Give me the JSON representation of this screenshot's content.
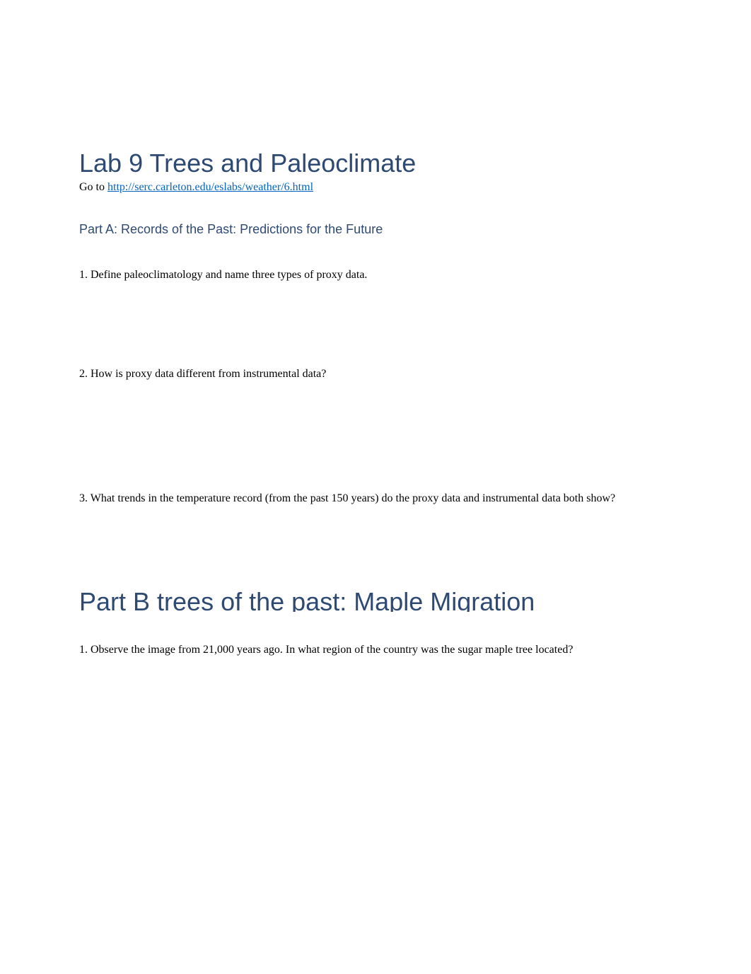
{
  "mainTitle": "Lab 9 Trees and Paleoclimate",
  "gotoPrefix": "Go to ",
  "gotoLink": "http://serc.carleton.edu/eslabs/weather/6.html",
  "partA": {
    "heading": "Part A: Records of the Past: Predictions for the Future",
    "q1": "1. Define paleoclimatology and name three types of proxy data.",
    "q2": "2. How is proxy data different from instrumental data?",
    "q3": "3. What trends in the temperature record (from the past 150 years) do the proxy data and instrumental data both show?"
  },
  "partB": {
    "heading": "Part B trees of the past:    Maple Migration",
    "q1": "1. Observe the image from 21,000 years ago. In what region of the country was the sugar maple tree located?"
  },
  "colors": {
    "headingColor": "#2e4a73",
    "linkColor": "#0563c1",
    "textColor": "#000000",
    "backgroundColor": "#ffffff"
  }
}
